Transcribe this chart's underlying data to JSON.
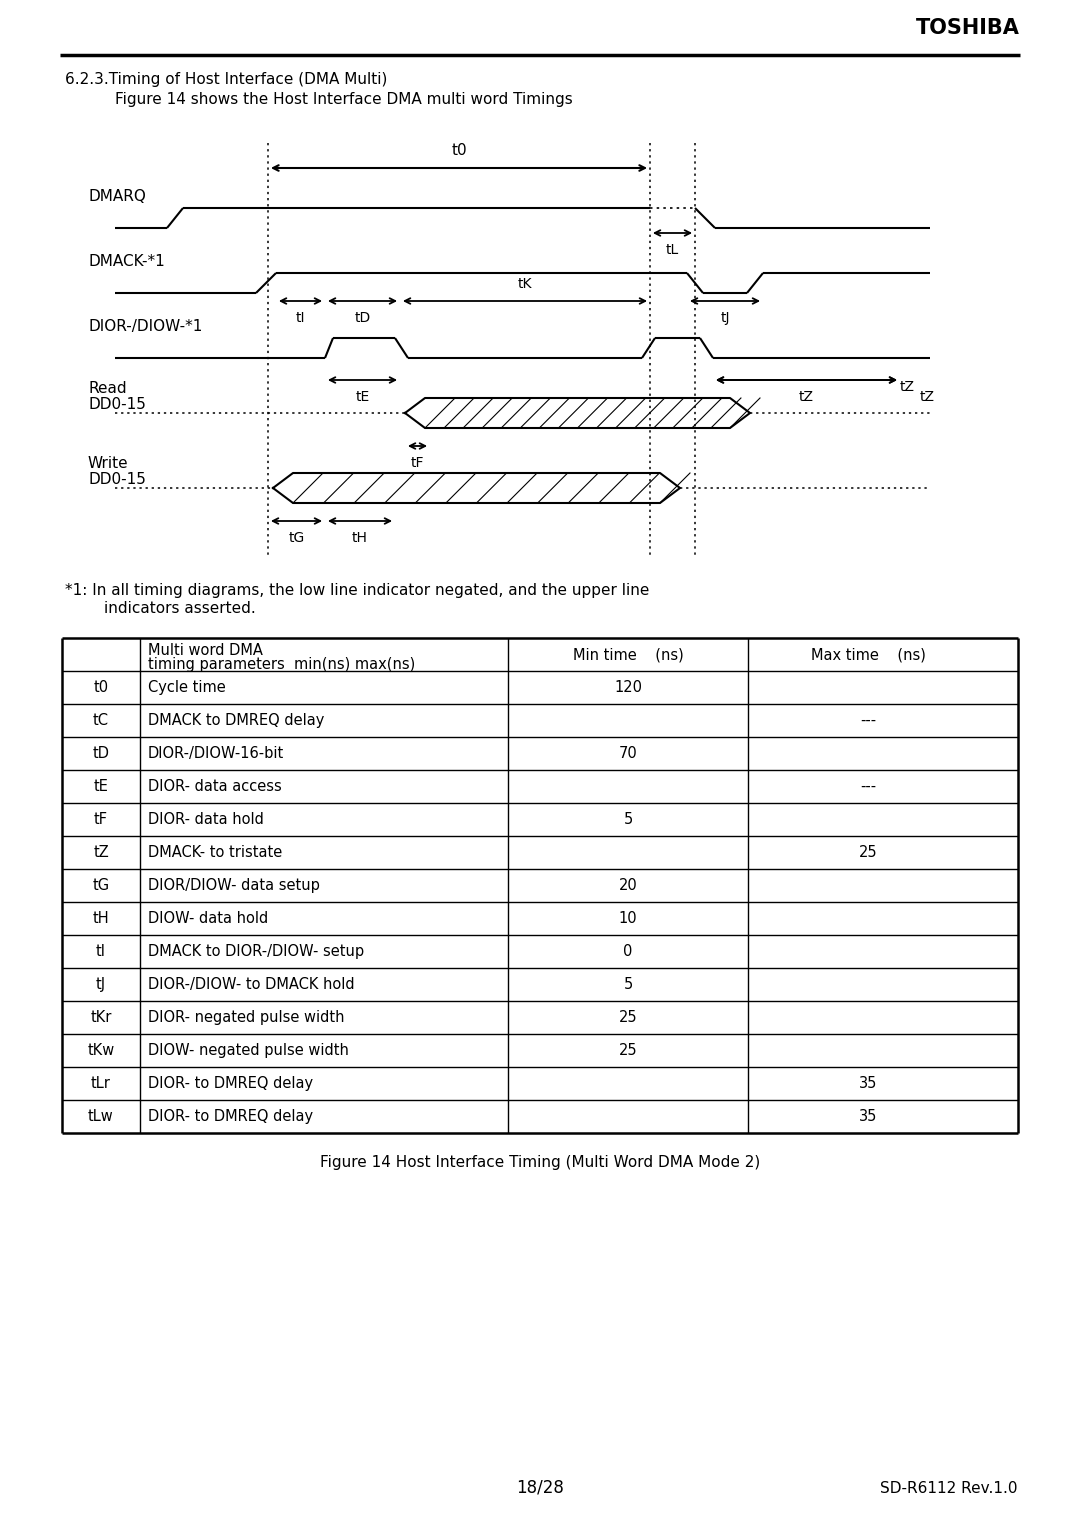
{
  "title_section": "6.2.3.Timing of Host Interface (DMA Multi)",
  "subtitle": "Figure 14 shows the Host Interface DMA multi word Timings",
  "toshiba_text": "TOSHIBA",
  "footnote1": "*1: In all timing diagrams, the low line indicator negated, and the upper line",
  "footnote2": "        indicators asserted.",
  "figure_caption": "Figure 14 Host Interface Timing (Multi Word DMA Mode 2)",
  "page_number": "18/28",
  "rev": "SD-R6112 Rev.1.0",
  "table_rows": [
    [
      "t0",
      "Cycle time",
      "120",
      ""
    ],
    [
      "tC",
      "DMACK to DMREQ delay",
      "",
      "---"
    ],
    [
      "tD",
      "DIOR-/DIOW-16-bit",
      "70",
      ""
    ],
    [
      "tE",
      "DIOR- data access",
      "",
      "---"
    ],
    [
      "tF",
      "DIOR- data hold",
      "5",
      ""
    ],
    [
      "tZ",
      "DMACK- to tristate",
      "",
      "25"
    ],
    [
      "tG",
      "DIOR/DIOW- data setup",
      "20",
      ""
    ],
    [
      "tH",
      "DIOW- data hold",
      "10",
      ""
    ],
    [
      "tI",
      "DMACK to DIOR-/DIOW- setup",
      "0",
      ""
    ],
    [
      "tJ",
      "DIOR-/DIOW- to DMACK hold",
      "5",
      ""
    ],
    [
      "tKr",
      "DIOR- negated pulse width",
      "25",
      ""
    ],
    [
      "tKw",
      "DIOW- negated pulse width",
      "25",
      ""
    ],
    [
      "tLr",
      "DIOR- to DMREQ delay",
      "",
      "35"
    ],
    [
      "tLw",
      "DIOR- to DMREQ delay",
      "",
      "35"
    ]
  ],
  "bg_color": "#ffffff",
  "text_color": "#000000"
}
